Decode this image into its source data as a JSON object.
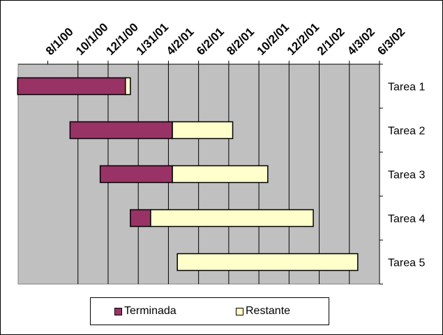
{
  "chart_data": {
    "type": "bar",
    "orientation": "horizontal",
    "stacked": true,
    "title": "",
    "xlabel": "",
    "ylabel": "",
    "x_axis_position": "top",
    "xlim": [
      "2000-06-02",
      "2002-06-03"
    ],
    "x_ticks": [
      "8/1/00",
      "10/1/00",
      "12/1/00",
      "1/31/01",
      "4/2/01",
      "6/2/01",
      "8/2/01",
      "10/2/01",
      "12/2/01",
      "2/1/02",
      "4/3/02",
      "6/3/02"
    ],
    "categories": [
      "Tarea 1",
      "Tarea 2",
      "Tarea 3",
      "Tarea 4",
      "Tarea 5"
    ],
    "series": [
      {
        "name": "Terminada",
        "color": "#993366",
        "start": [
          "2000-06-01",
          "2000-09-15",
          "2000-11-15",
          "2001-01-15",
          "2001-04-20"
        ],
        "end": [
          "2001-01-05",
          "2001-04-10",
          "2001-04-10",
          "2001-02-25",
          "2001-04-20"
        ]
      },
      {
        "name": "Restante",
        "color": "#FFFFCC",
        "start": [
          "2001-01-05",
          "2001-04-10",
          "2001-04-10",
          "2001-02-25",
          "2001-04-20"
        ],
        "end": [
          "2001-01-15",
          "2001-08-10",
          "2001-10-20",
          "2002-01-20",
          "2002-04-20"
        ]
      }
    ],
    "plot_background": "#C0C0C0",
    "grid": true,
    "legend_position": "bottom"
  }
}
